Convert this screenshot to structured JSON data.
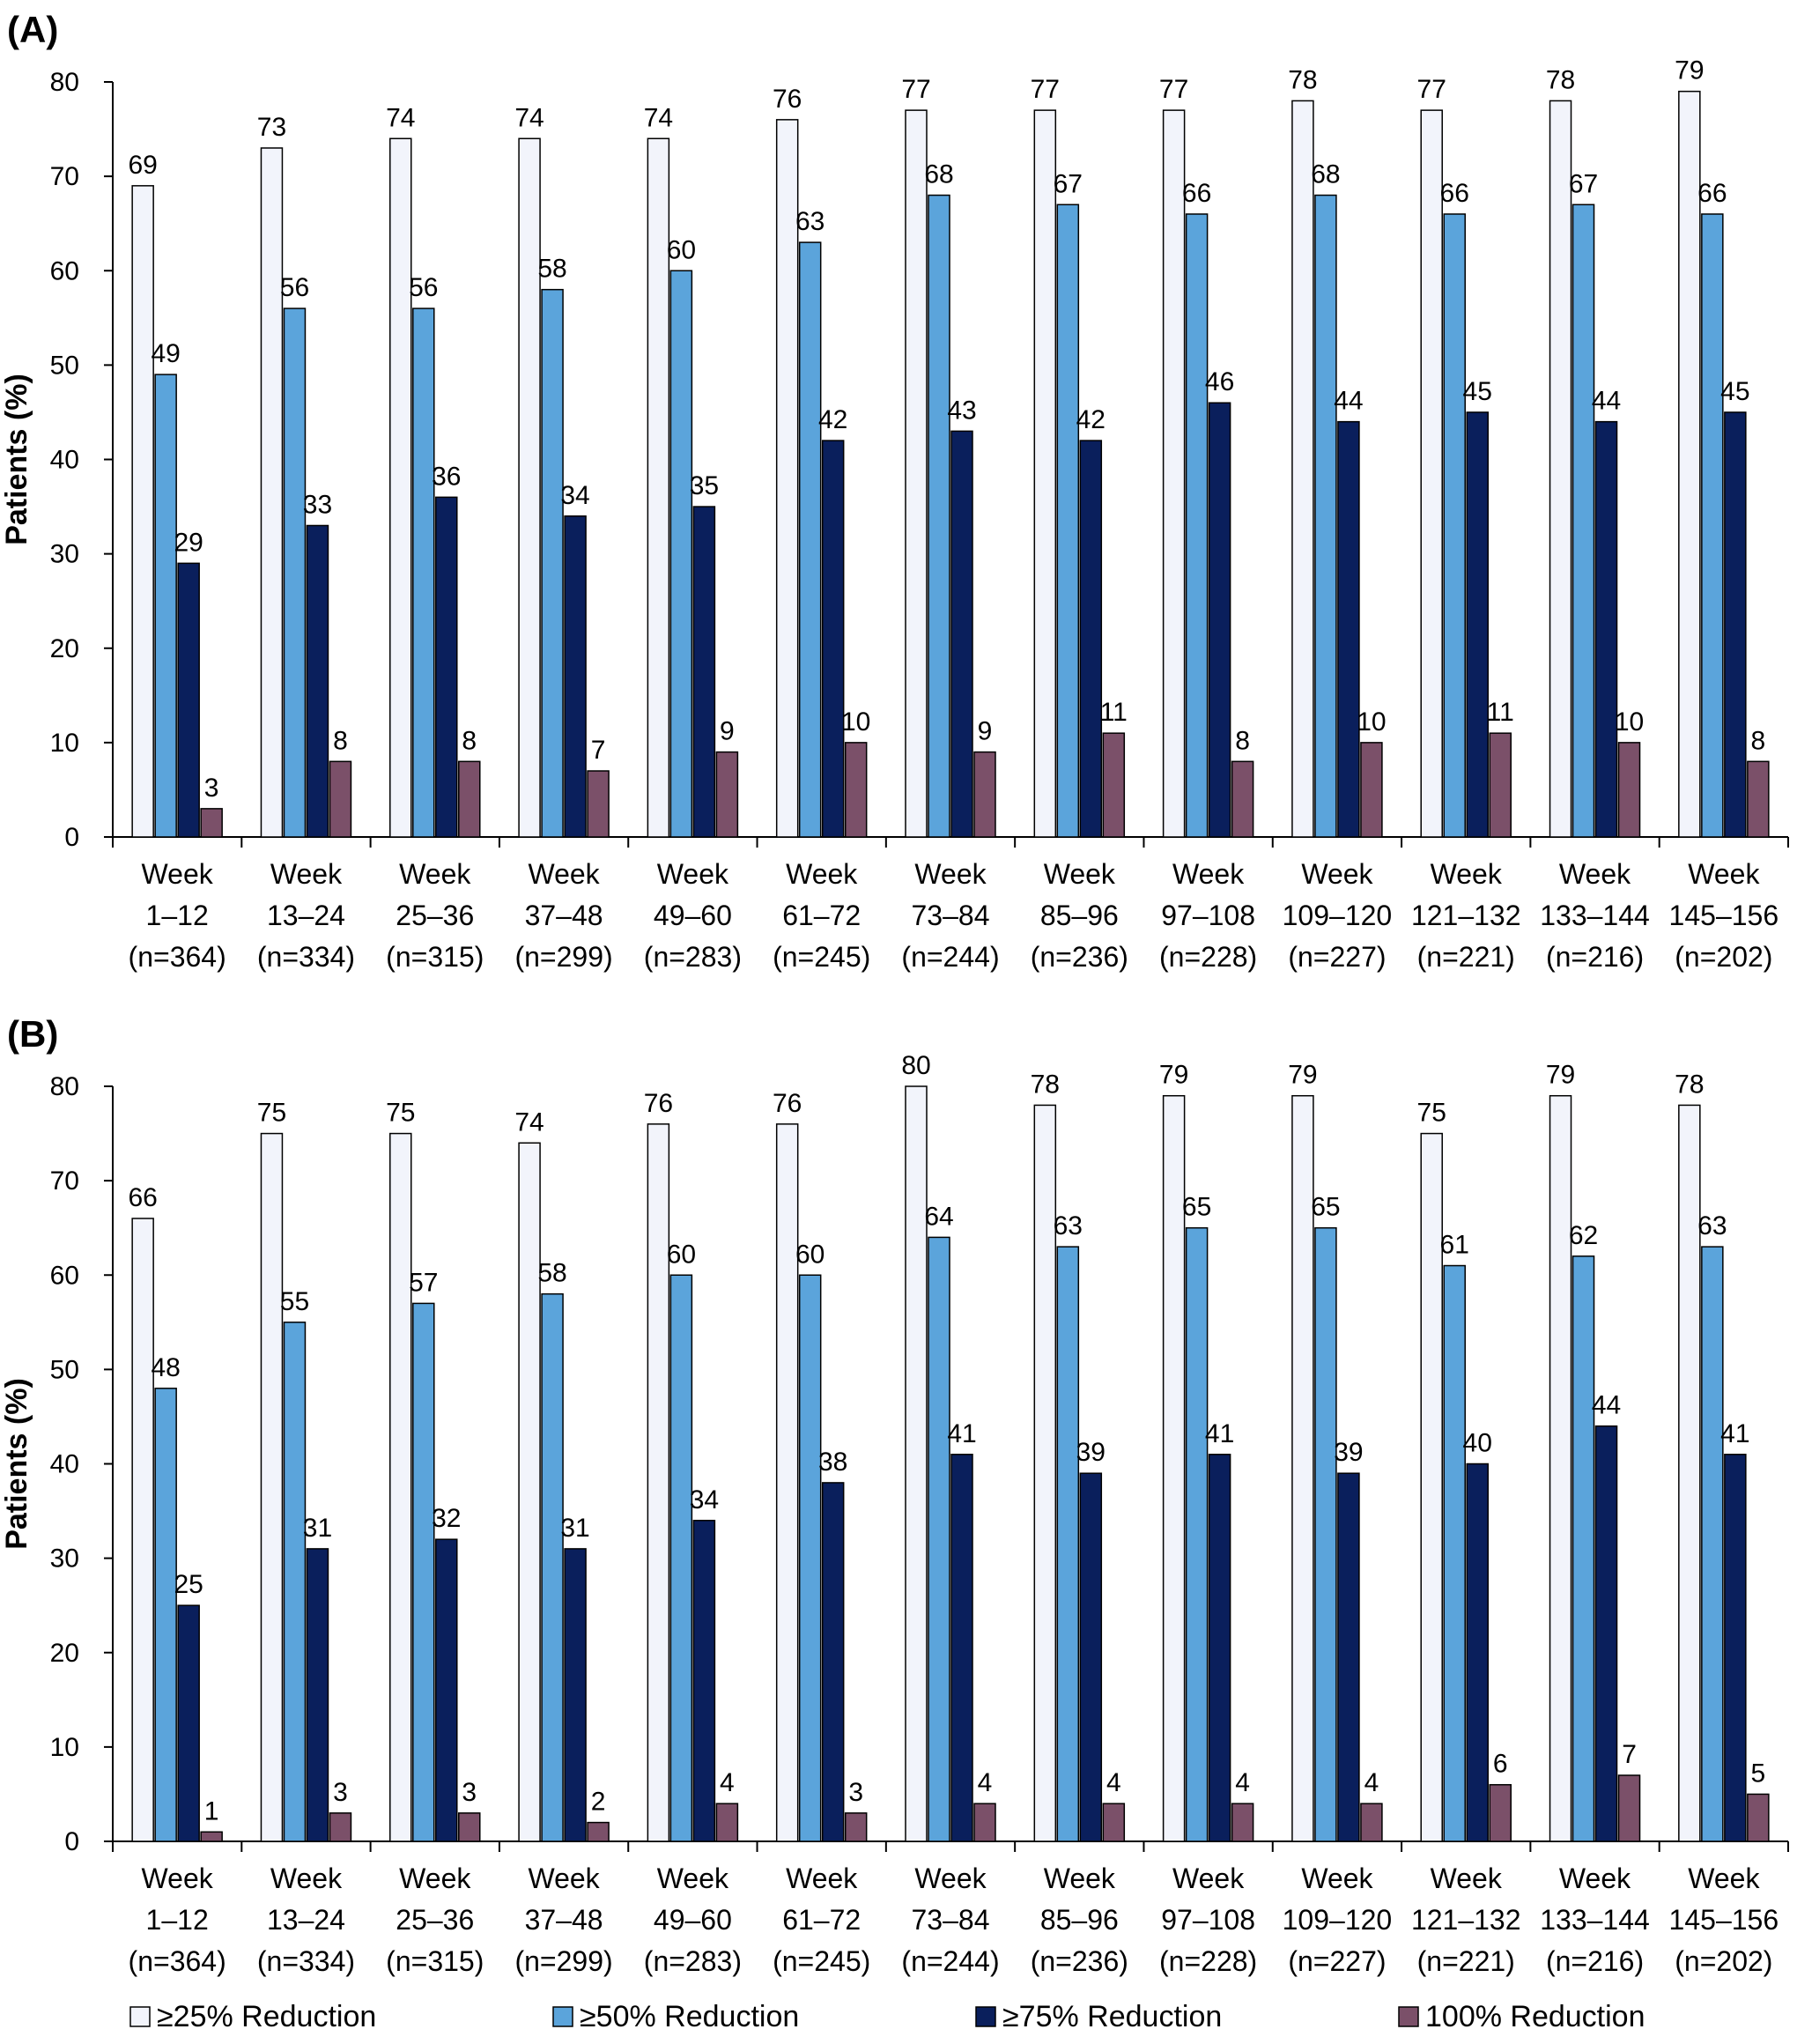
{
  "chart_data": [
    {
      "type": "bar",
      "panel_label": "(A)",
      "ylabel": "Patients (%)",
      "ylim": [
        0,
        80
      ],
      "yticks": [
        "0",
        "10",
        "20",
        "30",
        "40",
        "50",
        "60",
        "70",
        "80"
      ],
      "categories": [
        [
          "Week",
          "1–12",
          "(n=364)"
        ],
        [
          "Week",
          "13–24",
          "(n=334)"
        ],
        [
          "Week",
          "25–36",
          "(n=315)"
        ],
        [
          "Week",
          "37–48",
          "(n=299)"
        ],
        [
          "Week",
          "49–60",
          "(n=283)"
        ],
        [
          "Week",
          "61–72",
          "(n=245)"
        ],
        [
          "Week",
          "73–84",
          "(n=244)"
        ],
        [
          "Week",
          "85–96",
          "(n=236)"
        ],
        [
          "Week",
          "97–108",
          "(n=228)"
        ],
        [
          "Week",
          "109–120",
          "(n=227)"
        ],
        [
          "Week",
          "121–132",
          "(n=221)"
        ],
        [
          "Week",
          "133–144",
          "(n=216)"
        ],
        [
          "Week",
          "145–156",
          "(n=202)"
        ]
      ],
      "series": [
        {
          "name": "≥25% Reduction",
          "values": [
            69,
            73,
            74,
            74,
            74,
            76,
            77,
            77,
            77,
            78,
            77,
            78,
            79
          ]
        },
        {
          "name": "≥50% Reduction",
          "values": [
            49,
            56,
            56,
            58,
            60,
            63,
            68,
            67,
            66,
            68,
            66,
            67,
            66
          ]
        },
        {
          "name": "≥75% Reduction",
          "values": [
            29,
            33,
            36,
            34,
            35,
            42,
            43,
            42,
            46,
            44,
            45,
            44,
            45
          ]
        },
        {
          "name": "100% Reduction",
          "values": [
            3,
            8,
            8,
            7,
            9,
            10,
            9,
            11,
            8,
            10,
            11,
            10,
            8
          ]
        }
      ]
    },
    {
      "type": "bar",
      "panel_label": "(B)",
      "ylabel": "Patients (%)",
      "ylim": [
        0,
        80
      ],
      "yticks": [
        "0",
        "10",
        "20",
        "30",
        "40",
        "50",
        "60",
        "70",
        "80"
      ],
      "categories": [
        [
          "Week",
          "1–12",
          "(n=364)"
        ],
        [
          "Week",
          "13–24",
          "(n=334)"
        ],
        [
          "Week",
          "25–36",
          "(n=315)"
        ],
        [
          "Week",
          "37–48",
          "(n=299)"
        ],
        [
          "Week",
          "49–60",
          "(n=283)"
        ],
        [
          "Week",
          "61–72",
          "(n=245)"
        ],
        [
          "Week",
          "73–84",
          "(n=244)"
        ],
        [
          "Week",
          "85–96",
          "(n=236)"
        ],
        [
          "Week",
          "97–108",
          "(n=228)"
        ],
        [
          "Week",
          "109–120",
          "(n=227)"
        ],
        [
          "Week",
          "121–132",
          "(n=221)"
        ],
        [
          "Week",
          "133–144",
          "(n=216)"
        ],
        [
          "Week",
          "145–156",
          "(n=202)"
        ]
      ],
      "series": [
        {
          "name": "≥25% Reduction",
          "values": [
            66,
            75,
            75,
            74,
            76,
            76,
            80,
            78,
            79,
            79,
            75,
            79,
            78
          ]
        },
        {
          "name": "≥50% Reduction",
          "values": [
            48,
            55,
            57,
            58,
            60,
            60,
            64,
            63,
            65,
            65,
            61,
            62,
            63
          ]
        },
        {
          "name": "≥75% Reduction",
          "values": [
            25,
            31,
            32,
            31,
            34,
            38,
            41,
            39,
            41,
            39,
            40,
            44,
            41
          ]
        },
        {
          "name": "100% Reduction",
          "values": [
            1,
            3,
            3,
            2,
            4,
            3,
            4,
            4,
            4,
            4,
            6,
            7,
            5
          ]
        }
      ]
    }
  ],
  "legend": {
    "placement": "bottom",
    "items": [
      {
        "label": "≥25% Reduction",
        "color": "#F2F4FB"
      },
      {
        "label": "≥50% Reduction",
        "color": "#5BA4DB"
      },
      {
        "label": "≥75% Reduction",
        "color": "#0A1F5C"
      },
      {
        "label": "100% Reduction",
        "color": "#7B5069"
      }
    ]
  }
}
